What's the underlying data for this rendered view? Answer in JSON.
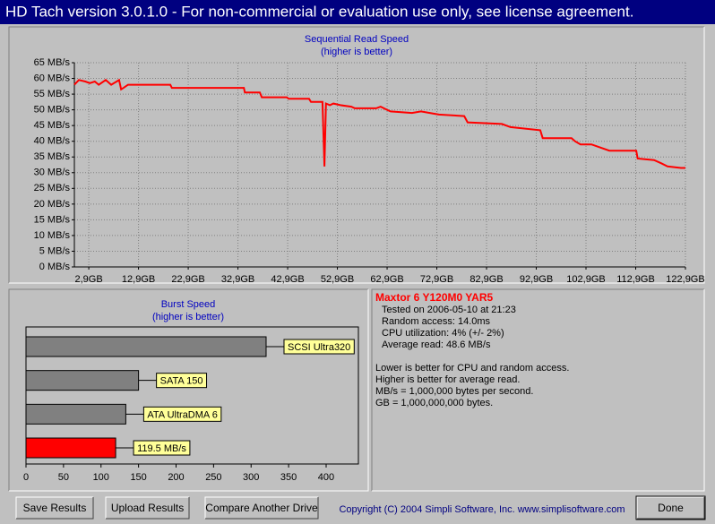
{
  "window": {
    "title": "HD Tach version 3.0.1.0  - For non-commercial or evaluation use only, see license agreement."
  },
  "chart_data": [
    {
      "type": "line",
      "title": "Sequential Read Speed",
      "subtitle": "(higher is better)",
      "color": "#ff0000",
      "grid": true,
      "x": [
        0,
        0.9,
        2.2,
        3.1,
        4.1,
        4.9,
        6.3,
        7.4,
        8.5,
        9.0,
        9.4,
        9.9,
        10.8,
        13.9,
        19.3,
        19.6,
        26.5,
        34.1,
        34.3,
        37.3,
        37.7,
        42.7,
        43.1,
        47.2,
        47.6,
        49.9,
        50.3,
        50.6,
        51.4,
        52.1,
        53.5,
        55.7,
        56.4,
        60.7,
        61.6,
        62.9,
        63.6,
        67.9,
        69.7,
        73.3,
        78.4,
        79.1,
        86.0,
        87.7,
        93.7,
        94.2,
        100.0,
        100.7,
        101.8,
        104.0,
        107.6,
        113.0,
        113.3,
        116.6,
        118.0,
        119.3,
        122.0,
        122.9
      ],
      "values": [
        58,
        59.5,
        59,
        58.5,
        59,
        58,
        59.5,
        58,
        59,
        59.5,
        56.5,
        57,
        58,
        58,
        58,
        57,
        57,
        57,
        55.5,
        55.5,
        54,
        54,
        53.5,
        53.5,
        52.5,
        52.5,
        32,
        52,
        51.5,
        52,
        51.5,
        51,
        50.5,
        50.5,
        51,
        50,
        49.5,
        49,
        49.5,
        48.5,
        48,
        46,
        45.5,
        44.5,
        43.5,
        41,
        41,
        40,
        39,
        39,
        37,
        37,
        34.5,
        34,
        33,
        32,
        31.5,
        31.5
      ],
      "xlim": [
        0,
        122.9
      ],
      "xticks": [
        {
          "value": 2.9,
          "label": "2,9GB"
        },
        {
          "value": 12.9,
          "label": "12,9GB"
        },
        {
          "value": 22.9,
          "label": "22,9GB"
        },
        {
          "value": 32.9,
          "label": "32,9GB"
        },
        {
          "value": 42.9,
          "label": "42,9GB"
        },
        {
          "value": 52.9,
          "label": "52,9GB"
        },
        {
          "value": 62.9,
          "label": "62,9GB"
        },
        {
          "value": 72.9,
          "label": "72,9GB"
        },
        {
          "value": 82.9,
          "label": "82,9GB"
        },
        {
          "value": 92.9,
          "label": "92,9GB"
        },
        {
          "value": 102.9,
          "label": "102,9GB"
        },
        {
          "value": 112.9,
          "label": "112,9GB"
        },
        {
          "value": 122.9,
          "label": "122,9GB"
        }
      ],
      "ylim": [
        0,
        65
      ],
      "yticks": [
        {
          "value": 0,
          "label": "0 MB/s"
        },
        {
          "value": 5,
          "label": "5 MB/s"
        },
        {
          "value": 10,
          "label": "10 MB/s"
        },
        {
          "value": 15,
          "label": "15 MB/s"
        },
        {
          "value": 20,
          "label": "20 MB/s"
        },
        {
          "value": 25,
          "label": "25 MB/s"
        },
        {
          "value": 30,
          "label": "30 MB/s"
        },
        {
          "value": 35,
          "label": "35 MB/s"
        },
        {
          "value": 40,
          "label": "40 MB/s"
        },
        {
          "value": 45,
          "label": "45 MB/s"
        },
        {
          "value": 50,
          "label": "50 MB/s"
        },
        {
          "value": 55,
          "label": "55 MB/s"
        },
        {
          "value": 60,
          "label": "60 MB/s"
        },
        {
          "value": 65,
          "label": "65 MB/s"
        }
      ]
    },
    {
      "type": "hbar",
      "title": "Burst Speed",
      "subtitle": "(higher is better)",
      "categories": [
        "SCSI Ultra320",
        "SATA 150",
        "ATA UltraDMA 6",
        null
      ],
      "values": [
        320,
        150,
        133,
        119.5
      ],
      "value_labels": [
        null,
        null,
        null,
        "119.5 MB/s"
      ],
      "colors": [
        "#808080",
        "#808080",
        "#808080",
        "#ff0000"
      ],
      "xlim": [
        0,
        443
      ],
      "xticks": [
        0,
        50,
        100,
        150,
        200,
        250,
        300,
        350,
        400
      ]
    }
  ],
  "info": {
    "drive": "Maxtor 6 Y120M0 YAR5",
    "details": [
      "Tested on 2006-05-10 at 21:23",
      "Random access: 14.0ms",
      "CPU utilization: 4% (+/- 2%)",
      "Average read: 48.6 MB/s"
    ],
    "notes": [
      "Lower is better for CPU and random access.",
      "Higher is better for average read.",
      "MB/s = 1,000,000 bytes per second.",
      "GB = 1,000,000,000 bytes."
    ]
  },
  "buttons": [
    "Save Results",
    "Upload Results",
    "Compare Another Drive",
    "Done"
  ],
  "copyright": "Copyright (C) 2004 Simpli Software, Inc. www.simplisoftware.com"
}
